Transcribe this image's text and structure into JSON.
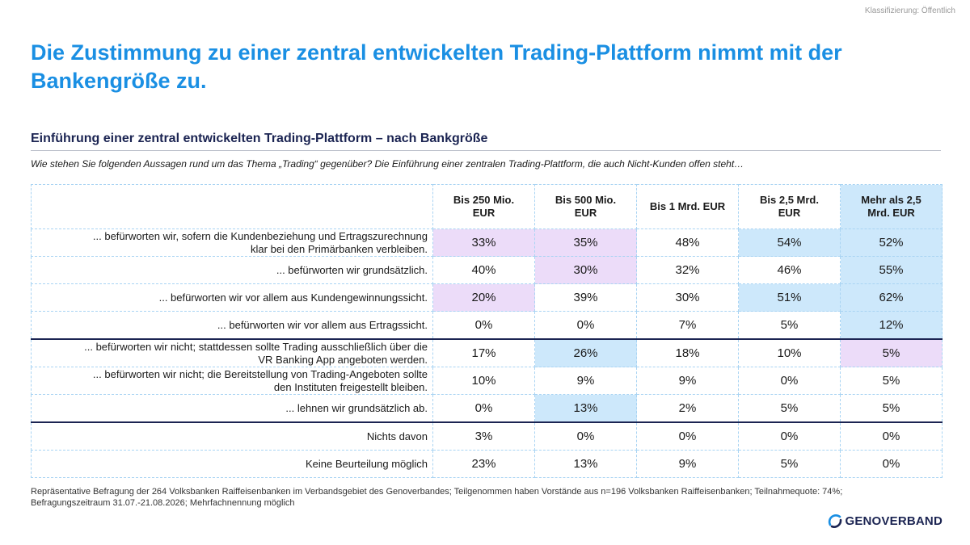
{
  "classification": "Klassifizierung: Öffentlich",
  "title": "Die Zustimmung zu einer zentral entwickelten Trading-Plattform nimmt mit der Bankengröße zu.",
  "subtitle": "Einführung einer zentral entwickelten Trading-Plattform – nach Bankgröße",
  "question": "Wie stehen Sie folgenden Aussagen rund um das Thema „Trading“ gegenüber? Die Einführung einer zentralen Trading-Plattform, die auch Nicht-Kunden offen steht…",
  "columns": [
    {
      "line1": "Bis 250 Mio.",
      "line2": "EUR"
    },
    {
      "line1": "Bis 500 Mio.",
      "line2": "EUR"
    },
    {
      "line1": "Bis 1 Mrd. EUR",
      "line2": ""
    },
    {
      "line1": "Bis 2,5 Mrd.",
      "line2": "EUR"
    },
    {
      "line1": "Mehr als 2,5",
      "line2": "Mrd. EUR"
    }
  ],
  "rows": [
    {
      "line1": "... befürworten wir, sofern die Kundenbeziehung und Ertragszurechnung",
      "line2": "klar bei den Primärbanken verbleiben.",
      "values": [
        "33%",
        "35%",
        "48%",
        "54%",
        "52%"
      ]
    },
    {
      "line1": "... befürworten wir grundsätzlich.",
      "line2": "",
      "values": [
        "40%",
        "30%",
        "32%",
        "46%",
        "55%"
      ]
    },
    {
      "line1": "... befürworten wir vor allem aus Kundengewinnungssicht.",
      "line2": "",
      "values": [
        "20%",
        "39%",
        "30%",
        "51%",
        "62%"
      ]
    },
    {
      "line1": "... befürworten wir vor allem aus Ertragssicht.",
      "line2": "",
      "values": [
        "0%",
        "0%",
        "7%",
        "5%",
        "12%"
      ]
    },
    {
      "line1": "... befürworten wir nicht; stattdessen sollte Trading ausschließlich über die",
      "line2": "VR Banking App angeboten werden.",
      "values": [
        "17%",
        "26%",
        "18%",
        "10%",
        "5%"
      ]
    },
    {
      "line1": "... befürworten wir nicht; die Bereitstellung von Trading-Angeboten sollte",
      "line2": "den Instituten freigestellt bleiben.",
      "values": [
        "10%",
        "9%",
        "9%",
        "0%",
        "5%"
      ]
    },
    {
      "line1": "... lehnen wir grundsätzlich ab.",
      "line2": "",
      "values": [
        "0%",
        "13%",
        "2%",
        "5%",
        "5%"
      ]
    },
    {
      "line1": "Nichts davon",
      "line2": "",
      "values": [
        "3%",
        "0%",
        "0%",
        "0%",
        "0%"
      ]
    },
    {
      "line1": "Keine Beurteilung möglich",
      "line2": "",
      "values": [
        "23%",
        "13%",
        "9%",
        "5%",
        "0%"
      ]
    }
  ],
  "footnote_line1": "Repräsentative Befragung der 264 Volksbanken Raiffeisenbanken im Verbandsgebiet des Genoverbandes; Teilgenommen haben Vorstände aus n=196 Volksbanken Raiffeisenbanken; Teilnahmequote: 74%;",
  "footnote_line2": "Befragungszeitraum 31.07.-21.08.2026; Mehrfachnennung möglich",
  "logo_text": "GENOVERBAND",
  "logo_icon": "genoverband-arc-icon",
  "colors": {
    "title": "#1a8fe3",
    "navy": "#1b2452",
    "highlight_purple": "#ecdcf9",
    "highlight_blue": "#cde8fb"
  }
}
